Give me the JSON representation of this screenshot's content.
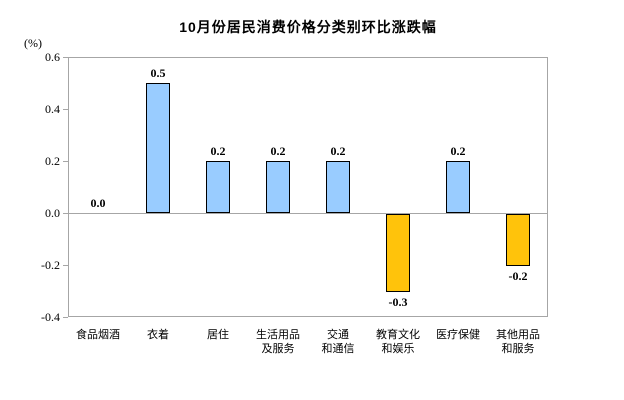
{
  "chart": {
    "title": "10月份居民消费价格分类别环比涨跌幅",
    "unit_label": "(%)"
  },
  "chart_data": {
    "type": "bar",
    "title": "10月份居民消费价格分类别环比涨跌幅",
    "ylabel": "(%)",
    "xlabel": "",
    "categories": [
      "食品烟酒",
      "衣着",
      "居住",
      "生活用品及服务",
      "交通和通信",
      "教育文化和娱乐",
      "医疗保健",
      "其他用品和服务"
    ],
    "category_label_lines": [
      [
        "食品烟酒"
      ],
      [
        "衣着"
      ],
      [
        "居住"
      ],
      [
        "生活用品",
        "及服务"
      ],
      [
        "交通",
        "和通信"
      ],
      [
        "教育文化",
        "和娱乐"
      ],
      [
        "医疗保健"
      ],
      [
        "其他用品",
        "和服务"
      ]
    ],
    "values": [
      0.0,
      0.5,
      0.2,
      0.2,
      0.2,
      -0.3,
      0.2,
      -0.2
    ],
    "value_labels": [
      "0.0",
      "0.5",
      "0.2",
      "0.2",
      "0.2",
      "-0.3",
      "0.2",
      "-0.2"
    ],
    "ylim": [
      -0.4,
      0.6
    ],
    "yticks": [
      0.6,
      0.4,
      0.2,
      0.0,
      -0.2,
      -0.4
    ],
    "ytick_labels": [
      "0.6",
      "0.4",
      "0.2",
      "0.0",
      "-0.2",
      "-0.4"
    ],
    "grid": "zero-line-only",
    "legend": "none",
    "colors": {
      "positive_bar": "#99CCFF",
      "negative_bar": "#FFC30B",
      "bar_border": "#000000",
      "axis_line": "#A6A6A6",
      "text": "#000000"
    }
  }
}
